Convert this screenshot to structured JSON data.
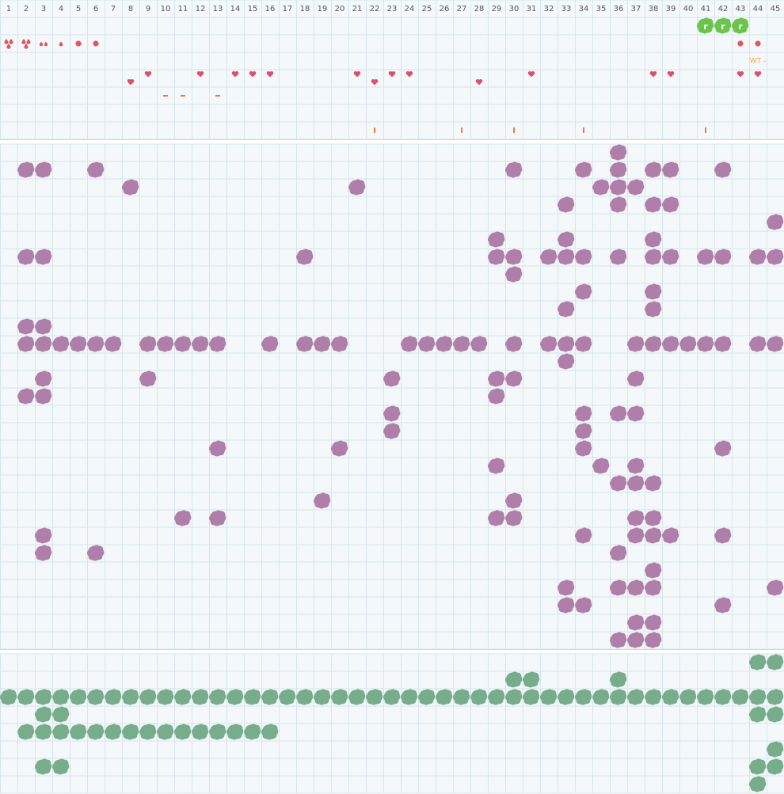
{
  "columns": [
    1,
    2,
    3,
    4,
    5,
    6,
    7,
    8,
    9,
    10,
    11,
    12,
    13,
    14,
    15,
    16,
    17,
    18,
    19,
    20,
    21,
    22,
    23,
    24,
    25,
    26,
    27,
    28,
    29,
    30,
    31,
    32,
    33,
    34,
    35,
    36,
    37,
    38,
    39,
    40,
    41,
    42,
    43,
    44,
    45
  ],
  "top": {
    "cycle_icons": [
      {
        "col": 41,
        "label": "r"
      },
      {
        "col": 42,
        "label": "r"
      },
      {
        "col": 43,
        "label": "r"
      }
    ],
    "bleeding": [
      {
        "col": 1,
        "kind": "heavy"
      },
      {
        "col": 2,
        "kind": "heavy"
      },
      {
        "col": 3,
        "kind": "medium"
      },
      {
        "col": 4,
        "kind": "light"
      },
      {
        "col": 5,
        "kind": "spotting"
      },
      {
        "col": 6,
        "kind": "spotting"
      },
      {
        "col": 43,
        "kind": "spotting"
      },
      {
        "col": 44,
        "kind": "spotting"
      }
    ],
    "note": {
      "col": 44,
      "text": "WT -"
    },
    "hearts": [
      9,
      12,
      14,
      15,
      16,
      21,
      23,
      24,
      31,
      38,
      39,
      43,
      44
    ],
    "hearts_low": [
      8,
      22,
      28
    ],
    "dashes": [
      10,
      11,
      13
    ],
    "ticks": [
      22,
      27,
      30,
      34,
      41
    ]
  },
  "purple_rows": [
    [
      36
    ],
    [
      2,
      3,
      6,
      30,
      34,
      36,
      38,
      39,
      42
    ],
    [
      8,
      21,
      35,
      36,
      37
    ],
    [
      33,
      36,
      38,
      39
    ],
    [
      45
    ],
    [
      29,
      33,
      38
    ],
    [
      2,
      3,
      18,
      29,
      30,
      32,
      33,
      34,
      36,
      38,
      39,
      41,
      42,
      44,
      45
    ],
    [
      30
    ],
    [
      34,
      38
    ],
    [
      33,
      38
    ],
    [
      2,
      3
    ],
    [
      2,
      3,
      4,
      5,
      6,
      7,
      9,
      10,
      11,
      12,
      13,
      16,
      18,
      19,
      20,
      24,
      25,
      26,
      27,
      28,
      30,
      32,
      33,
      34,
      37,
      38,
      39,
      40,
      41,
      42,
      44,
      45
    ],
    [
      33
    ],
    [
      3,
      9,
      23,
      29,
      30,
      37
    ],
    [
      2,
      3,
      29
    ],
    [
      23,
      34,
      36,
      37
    ],
    [
      23,
      34
    ],
    [
      13,
      20,
      34,
      42
    ],
    [
      29,
      35,
      37
    ],
    [
      36,
      37,
      38
    ],
    [
      19,
      30
    ],
    [
      11,
      13,
      29,
      30,
      37,
      38
    ],
    [
      3,
      34,
      37,
      38,
      39,
      42
    ],
    [
      3,
      6,
      36
    ],
    [
      38
    ],
    [
      33,
      36,
      37,
      38,
      45
    ],
    [
      33,
      34,
      42
    ],
    [
      37,
      38
    ],
    [
      36,
      37,
      38
    ]
  ],
  "green_rows": [
    [
      44,
      45
    ],
    [
      30,
      31,
      36
    ],
    [
      1,
      2,
      3,
      4,
      5,
      6,
      7,
      8,
      9,
      10,
      11,
      12,
      13,
      14,
      15,
      16,
      17,
      18,
      19,
      20,
      21,
      22,
      23,
      24,
      25,
      26,
      27,
      28,
      29,
      30,
      31,
      32,
      33,
      34,
      35,
      36,
      37,
      38,
      39,
      40,
      41,
      42,
      43,
      44,
      45
    ],
    [
      3,
      4,
      44,
      45
    ],
    [
      2,
      3,
      4,
      5,
      6,
      7,
      8,
      9,
      10,
      11,
      12,
      13,
      14,
      15,
      16
    ],
    [
      45
    ],
    [
      3,
      4,
      44,
      45
    ],
    [
      44
    ]
  ]
}
